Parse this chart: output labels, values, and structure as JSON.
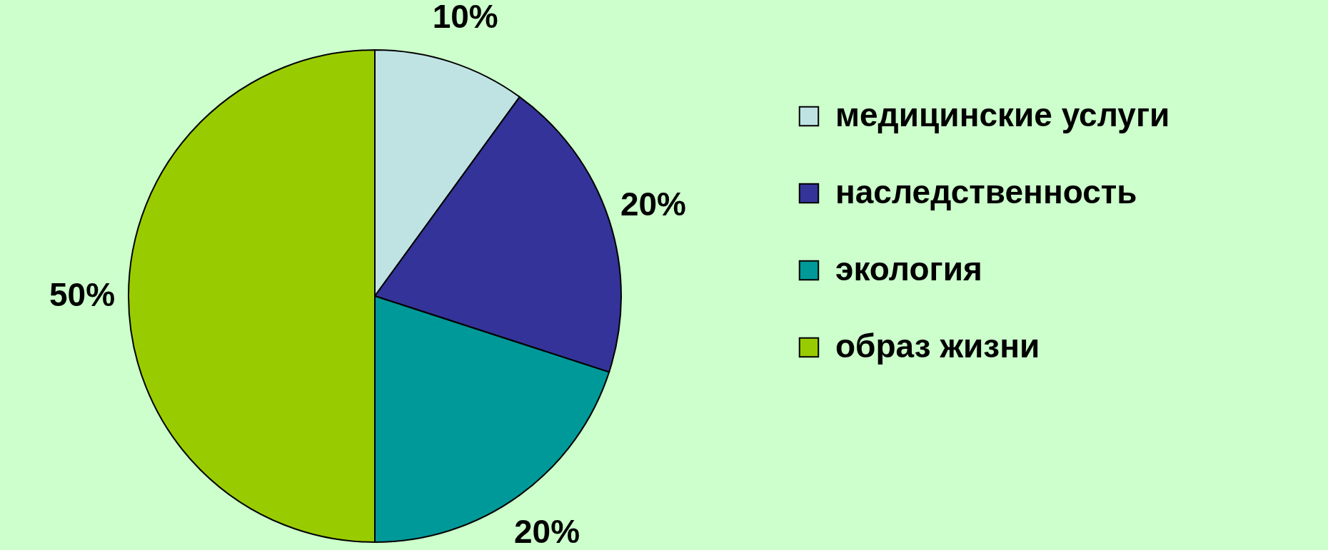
{
  "chart_data": {
    "type": "pie",
    "categories": [
      "медицинские услуги",
      "наследственность",
      "экология",
      "образ жизни"
    ],
    "values": [
      10,
      20,
      20,
      50
    ],
    "colors": [
      "#bfe3e3",
      "#333399",
      "#009999",
      "#99cc00"
    ],
    "value_labels": [
      "10%",
      "20%",
      "20%",
      "50%"
    ],
    "legend": "right"
  }
}
